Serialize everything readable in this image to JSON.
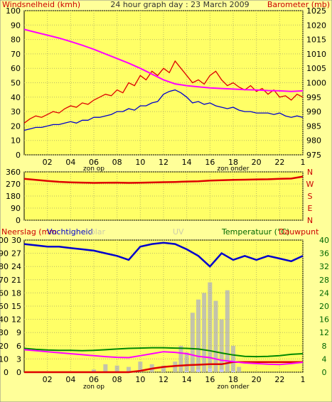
{
  "header": {
    "left_label": "Windsnelheid (kmh)",
    "title": "24 hour graph day : 23 March 2009",
    "right_label": "Barometer (mb)"
  },
  "colors": {
    "background": "#ffff99",
    "plot_area": "#ffff66",
    "wind_avg": "#0000cc",
    "wind_gust": "#dd0000",
    "barometer": "#ff00ff",
    "direction": "#dd0000",
    "humidity": "#0000cc",
    "rain": "#dd0000",
    "temperature": "#008800",
    "dewpoint": "#ff00ff",
    "solar": "#b8b8b8",
    "uv": "#c8c8ff",
    "red_text": "#cc0000",
    "green_text": "#006600",
    "faint_text": "#ccccaa"
  },
  "chart_data": [
    {
      "type": "line",
      "title": "24 hour graph day : 23 March 2009",
      "ylabel": "Windsnelheid (kmh)",
      "y2label": "Barometer (mb)",
      "x_tick_labels": [
        "02",
        "04",
        "06",
        "08",
        "10",
        "12",
        "14",
        "16",
        "18",
        "20",
        "22",
        "1"
      ],
      "x_annotations": [
        {
          "hour": 6,
          "text": "zon op"
        },
        {
          "hour": 18,
          "text": "zon onder"
        }
      ],
      "ylim": [
        0,
        100
      ],
      "yticks": [
        "0",
        "10",
        "20",
        "30",
        "40",
        "50",
        "60",
        "70",
        "80",
        "90",
        "100"
      ],
      "y2lim": [
        975,
        1025
      ],
      "y2ticks": [
        "975",
        "980",
        "985",
        "990",
        "995",
        "1000",
        "1005",
        "1010",
        "1015",
        "1020",
        "1025"
      ],
      "grid": true,
      "series": [
        {
          "name": "wind gust",
          "x": [
            0,
            0.5,
            1,
            1.5,
            2,
            2.5,
            3,
            3.5,
            4,
            4.5,
            5,
            5.5,
            6,
            6.5,
            7,
            7.5,
            8,
            8.5,
            9,
            9.5,
            10,
            10.5,
            11,
            11.5,
            12,
            12.5,
            13,
            13.5,
            14,
            14.5,
            15,
            15.5,
            16,
            16.5,
            17,
            17.5,
            18,
            18.5,
            19,
            19.5,
            20,
            20.5,
            21,
            21.5,
            22,
            22.5,
            23,
            23.5,
            24
          ],
          "values": [
            22,
            25,
            27,
            26,
            28,
            30,
            29,
            32,
            34,
            33,
            36,
            35,
            38,
            40,
            42,
            41,
            45,
            43,
            50,
            48,
            55,
            52,
            58,
            55,
            60,
            57,
            65,
            60,
            55,
            50,
            52,
            49,
            55,
            58,
            52,
            48,
            50,
            47,
            45,
            48,
            44,
            46,
            42,
            45,
            40,
            41,
            38,
            42,
            40
          ]
        },
        {
          "name": "wind average",
          "x": [
            0,
            0.5,
            1,
            1.5,
            2,
            2.5,
            3,
            3.5,
            4,
            4.5,
            5,
            5.5,
            6,
            6.5,
            7,
            7.5,
            8,
            8.5,
            9,
            9.5,
            10,
            10.5,
            11,
            11.5,
            12,
            12.5,
            13,
            13.5,
            14,
            14.5,
            15,
            15.5,
            16,
            16.5,
            17,
            17.5,
            18,
            18.5,
            19,
            19.5,
            20,
            20.5,
            21,
            21.5,
            22,
            22.5,
            23,
            23.5,
            24
          ],
          "values": [
            17,
            18,
            19,
            19,
            20,
            21,
            21,
            22,
            23,
            22,
            24,
            24,
            26,
            26,
            27,
            28,
            30,
            30,
            32,
            31,
            34,
            34,
            36,
            37,
            42,
            44,
            45,
            43,
            40,
            36,
            37,
            35,
            36,
            34,
            33,
            32,
            33,
            31,
            30,
            30,
            29,
            29,
            29,
            28,
            29,
            27,
            26,
            27,
            26
          ]
        },
        {
          "name": "barometer",
          "axis": "y2",
          "x": [
            0,
            1,
            2,
            3,
            4,
            5,
            6,
            7,
            8,
            9,
            10,
            11,
            12,
            13,
            14,
            15,
            16,
            17,
            18,
            19,
            20,
            21,
            22,
            23,
            24
          ],
          "values": [
            1018.5,
            1017.5,
            1016.5,
            1015.5,
            1014.3,
            1013,
            1011.6,
            1010,
            1008.4,
            1006.8,
            1005,
            1003,
            1001,
            999.6,
            999,
            998.6,
            998.2,
            998,
            997.8,
            997.6,
            997.5,
            997.3,
            997.2,
            997,
            997.2
          ]
        }
      ]
    },
    {
      "type": "line",
      "y2label": "N W S E N",
      "ylim": [
        0,
        360
      ],
      "yticks": [
        "0",
        "90",
        "180",
        "270",
        "360"
      ],
      "compass_labels": [
        "N",
        "W",
        "S",
        "E",
        "N"
      ],
      "grid": true,
      "series": [
        {
          "name": "wind direction",
          "x": [
            0,
            1,
            2,
            3,
            4,
            5,
            6,
            7,
            8,
            9,
            10,
            11,
            12,
            13,
            14,
            15,
            16,
            17,
            18,
            19,
            20,
            21,
            22,
            23,
            24
          ],
          "values": [
            308,
            300,
            292,
            286,
            282,
            280,
            278,
            279,
            280,
            278,
            279,
            281,
            283,
            285,
            288,
            290,
            295,
            298,
            300,
            302,
            304,
            305,
            308,
            310,
            325
          ]
        }
      ]
    },
    {
      "type": "line",
      "ylabel": "Neerslag (mm",
      "ylabel2": "Vochtigheid",
      "faint_labels": [
        "olar",
        "UV"
      ],
      "y2label": "Temperatuur (°C)",
      "y2label_extra": "Dauwpunt",
      "yticks_left_outer": [
        "0",
        "10",
        "20",
        "30",
        "40",
        "50",
        "60",
        "70",
        "80",
        "90",
        "100"
      ],
      "yticks_left_inner": [
        "0",
        "3",
        "6",
        "9",
        "12",
        "15",
        "18",
        "21",
        "24",
        "27",
        "30"
      ],
      "yticks_right": [
        "0",
        "4",
        "8",
        "12",
        "16",
        "20",
        "24",
        "28",
        "32",
        "36",
        "40"
      ],
      "grid": true,
      "series": [
        {
          "name": "Vochtigheid",
          "x": [
            0,
            1,
            2,
            3,
            4,
            5,
            6,
            7,
            8,
            9,
            10,
            11,
            12,
            13,
            14,
            15,
            16,
            17,
            18,
            19,
            20,
            21,
            22,
            23,
            24
          ],
          "values": [
            97,
            96,
            95,
            95,
            94,
            93,
            92,
            90,
            88,
            85,
            95,
            97,
            98,
            97,
            93,
            88,
            80,
            90,
            85,
            88,
            85,
            88,
            86,
            84,
            88
          ]
        },
        {
          "name": "Neerslag",
          "x": [
            0,
            1,
            2,
            3,
            4,
            5,
            6,
            7,
            8,
            9,
            10,
            11,
            12,
            13,
            14,
            15,
            16,
            17,
            18,
            19,
            20,
            21,
            22,
            23,
            24
          ],
          "values": [
            0,
            0,
            0,
            0,
            0,
            0,
            0,
            0,
            0,
            0,
            0.3,
            0.8,
            1.2,
            1.4,
            1.6,
            1.7,
            1.8,
            1.8,
            2.3,
            2.3,
            2.3,
            2.3,
            2.3,
            2.3,
            2.3
          ]
        },
        {
          "name": "Temperatuur",
          "x": [
            0,
            1,
            2,
            3,
            4,
            5,
            6,
            7,
            8,
            9,
            10,
            11,
            12,
            13,
            14,
            15,
            16,
            17,
            18,
            19,
            20,
            21,
            22,
            23,
            24
          ],
          "values": [
            7.2,
            6.9,
            6.7,
            6.6,
            6.6,
            6.5,
            6.6,
            6.8,
            7.0,
            7.2,
            7.3,
            7.4,
            7.4,
            7.3,
            7.2,
            7.0,
            6.5,
            5.8,
            5.2,
            4.8,
            4.7,
            4.8,
            5.0,
            5.4,
            5.6
          ]
        },
        {
          "name": "Dauwpunt",
          "x": [
            0,
            1,
            2,
            3,
            4,
            5,
            6,
            7,
            8,
            9,
            10,
            11,
            12,
            13,
            14,
            15,
            16,
            17,
            18,
            19,
            20,
            21,
            22,
            23,
            24
          ],
          "values": [
            6.8,
            6.5,
            6.2,
            5.9,
            5.6,
            5.3,
            5.0,
            4.7,
            4.5,
            4.4,
            5.0,
            5.6,
            6.2,
            6.0,
            5.6,
            4.8,
            4.4,
            3.6,
            3.2,
            2.8,
            2.6,
            2.4,
            2.3,
            2.6,
            3.0
          ]
        },
        {
          "name": "Solar",
          "x": [
            6,
            7,
            8,
            9,
            10,
            11,
            12,
            13,
            13.5,
            14,
            14.5,
            15,
            15.5,
            16,
            16.5,
            17,
            17.5,
            18,
            18.5
          ],
          "values": [
            2,
            6,
            5,
            4,
            8,
            6,
            5,
            8,
            20,
            15,
            45,
            55,
            60,
            68,
            54,
            40,
            62,
            20,
            4
          ]
        },
        {
          "name": "UV",
          "x": [
            14,
            15,
            16,
            17,
            18
          ],
          "values": [
            1,
            2,
            3,
            2,
            1
          ]
        }
      ]
    }
  ]
}
